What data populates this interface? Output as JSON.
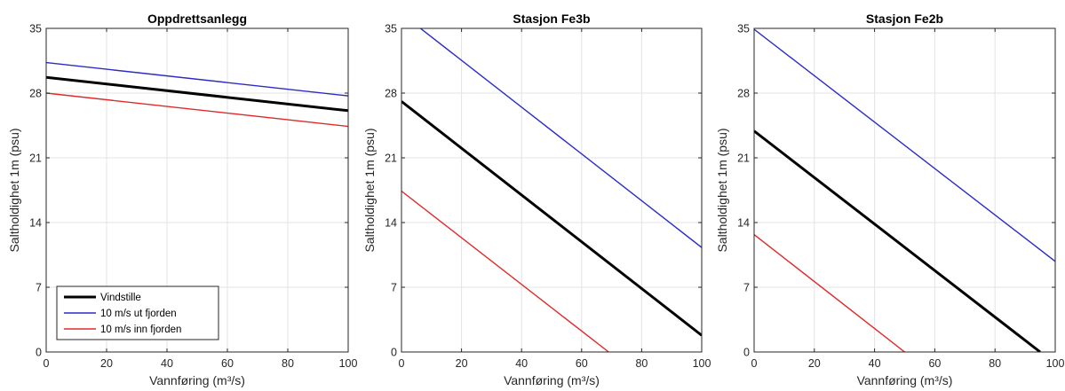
{
  "chart_data": [
    {
      "type": "line",
      "title": "Oppdrettsanlegg",
      "xlabel": "Vannføring (m³/s)",
      "ylabel": "Saltholdighet 1m (psu)",
      "xlim": [
        0,
        100
      ],
      "ylim": [
        0,
        35
      ],
      "xticks": [
        0,
        20,
        40,
        60,
        80,
        100
      ],
      "yticks": [
        0,
        7,
        14,
        21,
        28,
        35
      ],
      "grid": true,
      "legend": "bottom-left",
      "series": [
        {
          "name": "Vindstille",
          "color": "#000000",
          "x": [
            0,
            100
          ],
          "y": [
            29.7,
            26.1
          ]
        },
        {
          "name": "10 m/s ut fjorden",
          "color": "#2b2bc8",
          "x": [
            0,
            100
          ],
          "y": [
            31.3,
            27.7
          ]
        },
        {
          "name": "10 m/s inn fjorden",
          "color": "#e02a2a",
          "x": [
            0,
            100
          ],
          "y": [
            28.0,
            24.4
          ]
        }
      ]
    },
    {
      "type": "line",
      "title": "Stasjon Fe3b",
      "xlabel": "Vannføring (m³/s)",
      "ylabel": "Saltholdighet 1m (psu)",
      "xlim": [
        0,
        100
      ],
      "ylim": [
        0,
        35
      ],
      "xticks": [
        0,
        20,
        40,
        60,
        80,
        100
      ],
      "yticks": [
        0,
        7,
        14,
        21,
        28,
        35
      ],
      "grid": true,
      "series": [
        {
          "name": "Vindstille",
          "color": "#000000",
          "x": [
            0,
            100
          ],
          "y": [
            27.1,
            1.8
          ]
        },
        {
          "name": "10 m/s ut fjorden",
          "color": "#2b2bc8",
          "x": [
            0,
            100
          ],
          "y": [
            36.6,
            11.3
          ]
        },
        {
          "name": "10 m/s inn fjorden",
          "color": "#e02a2a",
          "x": [
            0,
            69
          ],
          "y": [
            17.4,
            0
          ]
        }
      ]
    },
    {
      "type": "line",
      "title": "Stasjon Fe2b",
      "xlabel": "Vannføring (m³/s)",
      "ylabel": "Saltholdighet 1m (psu)",
      "xlim": [
        0,
        100
      ],
      "ylim": [
        0,
        35
      ],
      "xticks": [
        0,
        20,
        40,
        60,
        80,
        100
      ],
      "yticks": [
        0,
        7,
        14,
        21,
        28,
        35
      ],
      "grid": true,
      "series": [
        {
          "name": "Vindstille",
          "color": "#000000",
          "x": [
            0,
            95
          ],
          "y": [
            23.9,
            0
          ]
        },
        {
          "name": "10 m/s ut fjorden",
          "color": "#2b2bc8",
          "x": [
            0,
            100
          ],
          "y": [
            34.9,
            9.8
          ]
        },
        {
          "name": "10 m/s inn fjorden",
          "color": "#e02a2a",
          "x": [
            0,
            50
          ],
          "y": [
            12.7,
            0
          ]
        }
      ]
    }
  ]
}
